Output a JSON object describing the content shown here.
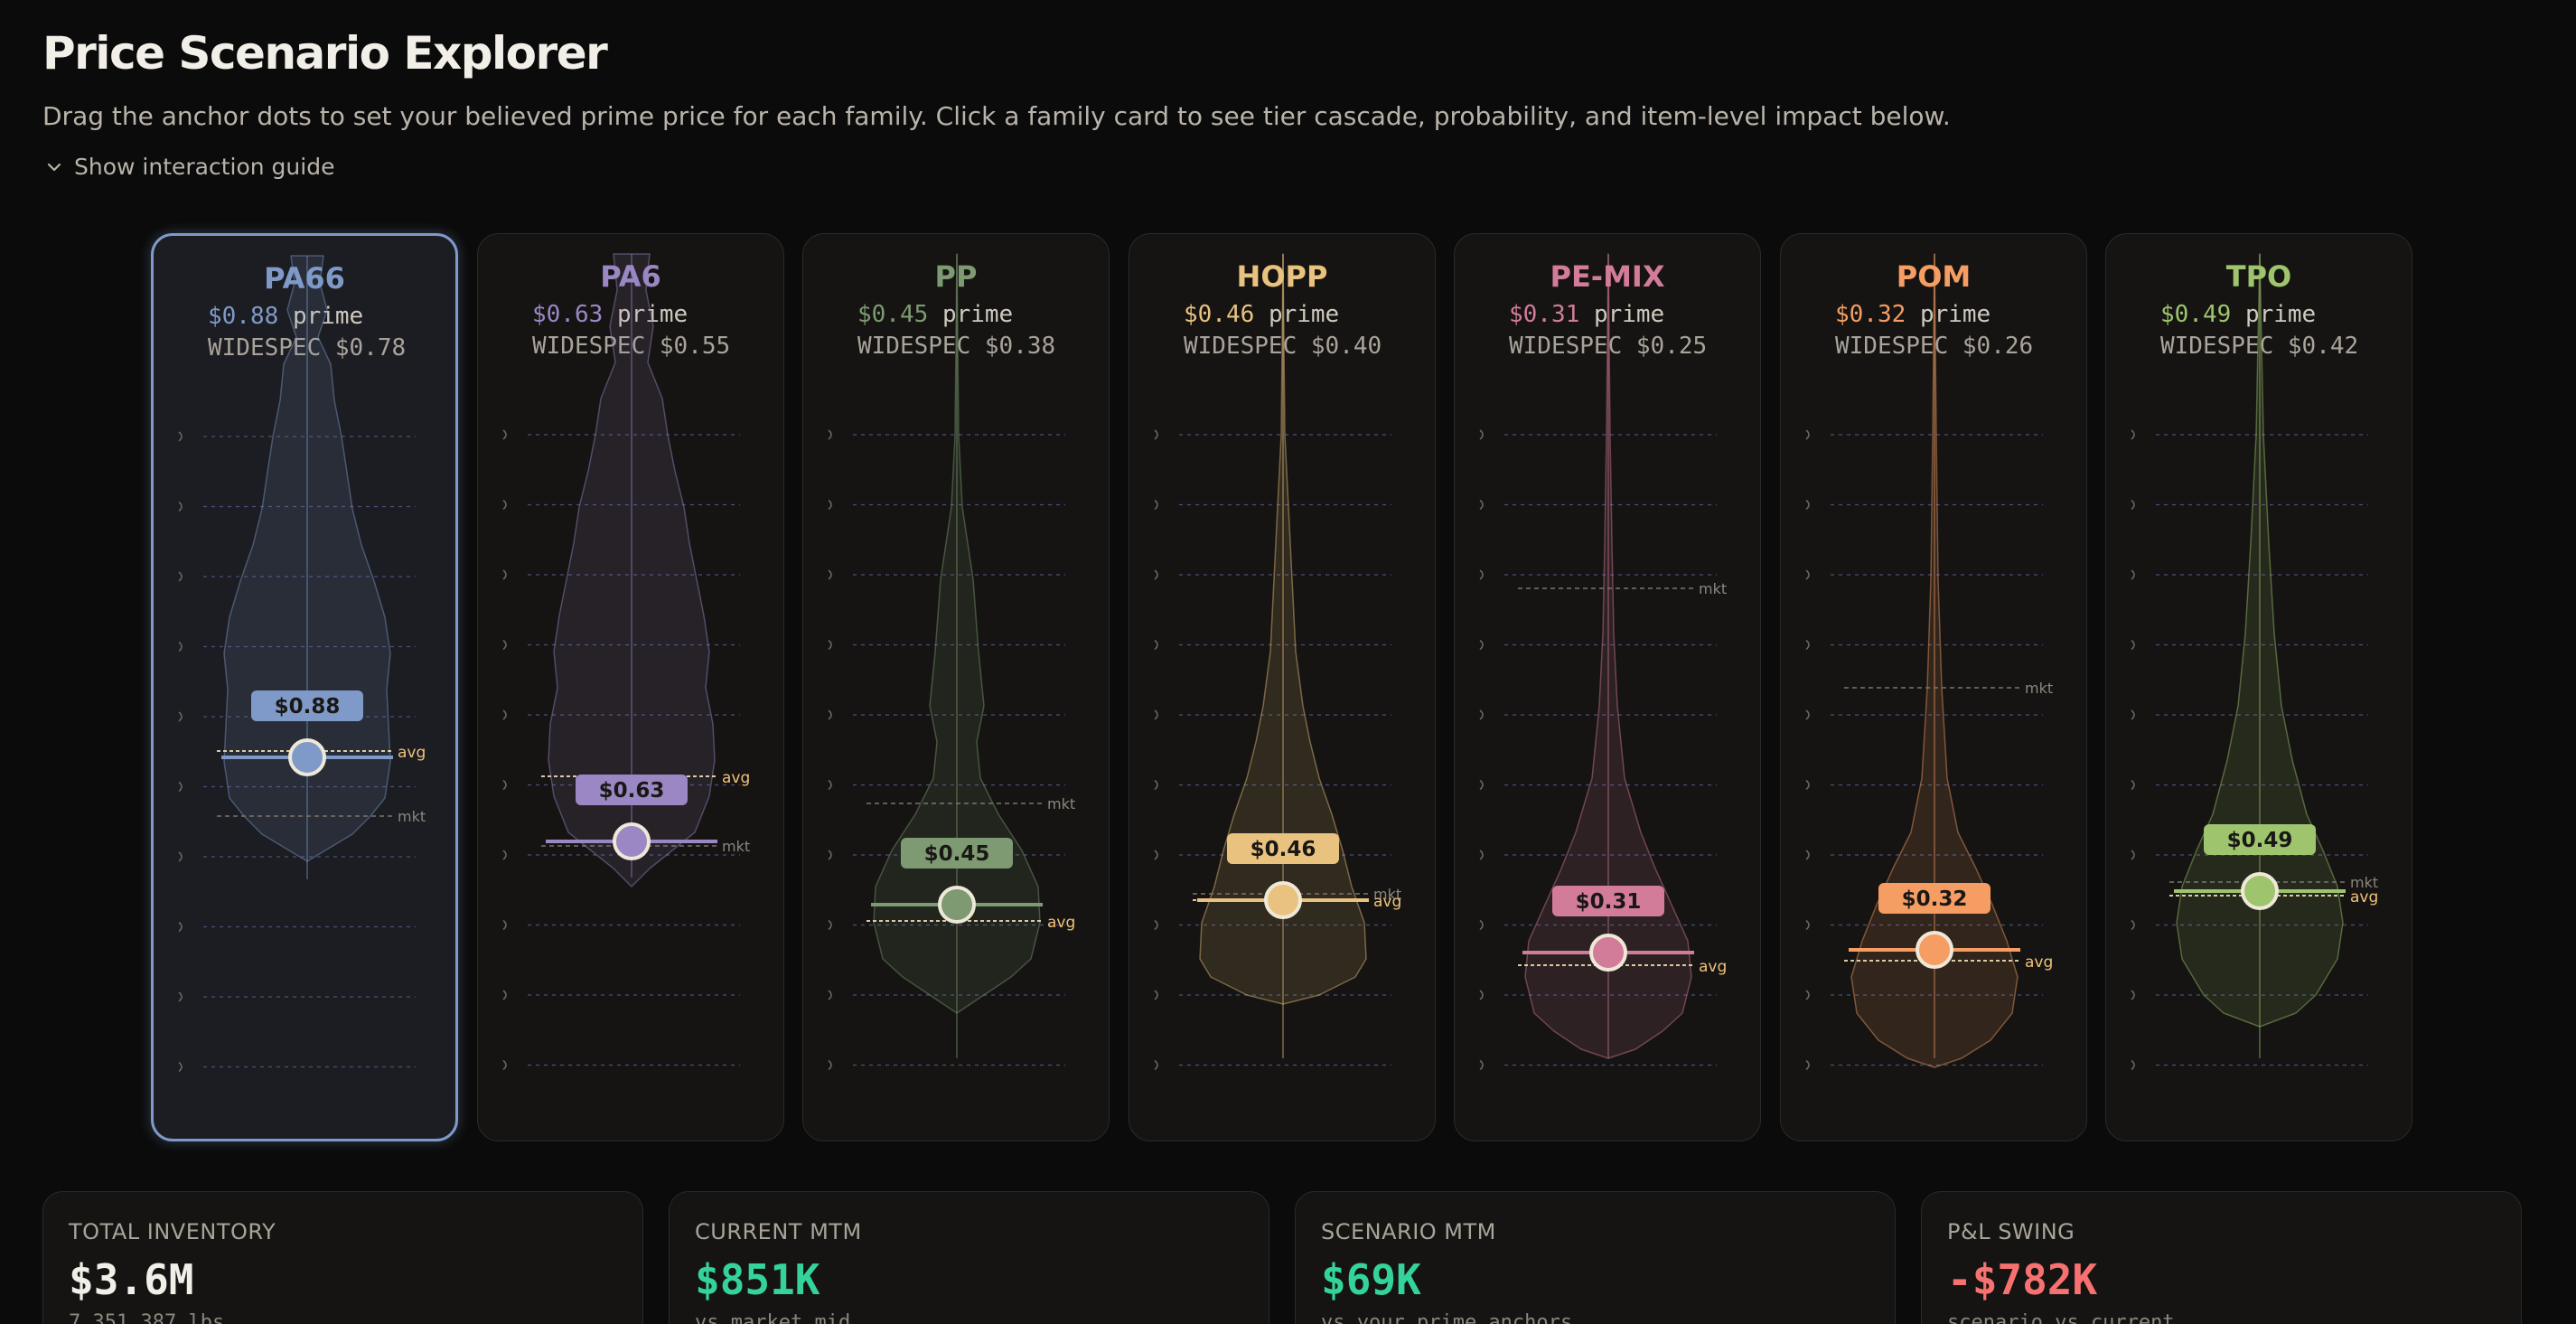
{
  "header": {
    "title": "Price Scenario Explorer",
    "subtitle": "Drag the anchor dots to set your believed prime price for each family. Click a family card to see tier cascade, probability, and item-level impact below.",
    "guide_toggle": "Show interaction guide"
  },
  "labels": {
    "prime": "prime",
    "widespec": "WIDESPEC",
    "avg": "avg",
    "mkt": "mkt"
  },
  "families": [
    {
      "name": "PA66",
      "prime": "$0.88",
      "widespec": "$0.78",
      "anchor_label": "$0.88",
      "color": "#7f9ac8",
      "selected": true
    },
    {
      "name": "PA6",
      "prime": "$0.63",
      "widespec": "$0.55",
      "anchor_label": "$0.63",
      "color": "#9a87c4",
      "selected": false
    },
    {
      "name": "PP",
      "prime": "$0.45",
      "widespec": "$0.38",
      "anchor_label": "$0.45",
      "color": "#7d9a72",
      "selected": false
    },
    {
      "name": "HOPP",
      "prime": "$0.46",
      "widespec": "$0.40",
      "anchor_label": "$0.46",
      "color": "#e9c27f",
      "selected": false
    },
    {
      "name": "PE-MIX",
      "prime": "$0.31",
      "widespec": "$0.25",
      "anchor_label": "$0.31",
      "color": "#d27c9a",
      "selected": false
    },
    {
      "name": "POM",
      "prime": "$0.32",
      "widespec": "$0.26",
      "anchor_label": "$0.32",
      "color": "#f59d63",
      "selected": false
    },
    {
      "name": "TPO",
      "prime": "$0.49",
      "widespec": "$0.42",
      "anchor_label": "$0.49",
      "color": "#9ec46d",
      "selected": false
    }
  ],
  "metrics": [
    {
      "label": "TOTAL INVENTORY",
      "value": "$3.6M",
      "sub": "7,351,387 lbs",
      "color": "#f2efe9"
    },
    {
      "label": "CURRENT MTM",
      "value": "$851K",
      "sub": "vs market mid",
      "color": "#34d399"
    },
    {
      "label": "SCENARIO MTM",
      "value": "$69K",
      "sub": "vs your prime anchors",
      "color": "#34d399"
    },
    {
      "label": "P&L SWING",
      "value": "-$782K",
      "sub": "scenario vs current",
      "color": "#f87171"
    }
  ]
}
